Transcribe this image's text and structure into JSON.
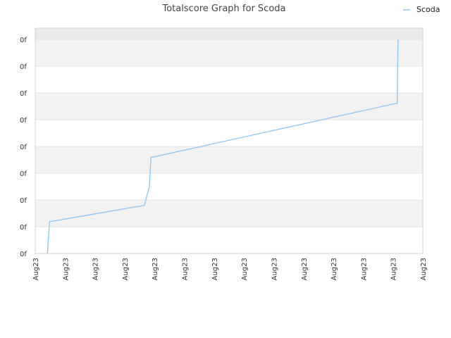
{
  "chart_data": {
    "type": "line",
    "title": "Totalscore Graph for Scoda",
    "xlabel": "",
    "ylabel": "",
    "legend": {
      "position": "top-right"
    },
    "grid": true,
    "x_tick_labels": [
      "Aug23",
      "Aug23",
      "Aug23",
      "Aug23",
      "Aug23",
      "Aug23",
      "Aug23",
      "Aug23",
      "Aug23",
      "Aug23",
      "Aug23",
      "Aug23",
      "Aug23",
      "Aug23"
    ],
    "y_tick_labels": [
      "0f",
      "0f",
      "0f",
      "0f",
      "0f",
      "0f",
      "0f",
      "0f",
      "0f"
    ],
    "xlim": [
      0,
      13
    ],
    "ylim": [
      0,
      8
    ],
    "series": [
      {
        "name": "Scoda",
        "color": "#94c4ee",
        "x": [
          0.41,
          0.48,
          0.55,
          3.66,
          3.83,
          3.88,
          3.94,
          12.06,
          12.14,
          12.17
        ],
        "y": [
          0,
          1.2,
          1.2,
          1.8,
          2.5,
          3.6,
          3.6,
          5.6,
          5.6,
          8.0
        ]
      }
    ]
  },
  "colors": {
    "band": "#f2f2f2",
    "band_top": "#ebebeb",
    "grid": "#e3e3e3",
    "axis": "#d6d6d6"
  }
}
